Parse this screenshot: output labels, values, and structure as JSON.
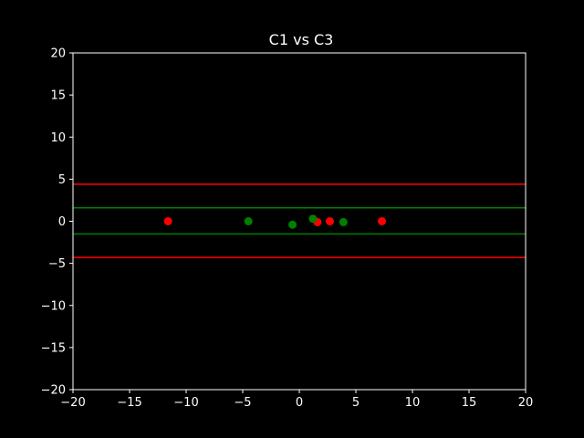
{
  "chart_data": {
    "type": "scatter",
    "title": "C1 vs C3",
    "xlabel": "",
    "ylabel": "",
    "xlim": [
      -20,
      20
    ],
    "ylim": [
      -20,
      20
    ],
    "xticks": [
      -20,
      -15,
      -10,
      -5,
      0,
      5,
      10,
      15,
      20
    ],
    "yticks": [
      -20,
      -15,
      -10,
      -5,
      0,
      5,
      10,
      15,
      20
    ],
    "grid": false,
    "background_color": "#000000",
    "axis_color": "#ffffff",
    "series": [
      {
        "color": "#ff0000",
        "points": [
          {
            "x": -11.6,
            "y": 0.0
          },
          {
            "x": 1.6,
            "y": -0.1
          },
          {
            "x": 2.7,
            "y": 0.0
          },
          {
            "x": 7.3,
            "y": 0.0
          }
        ]
      },
      {
        "color": "#008000",
        "points": [
          {
            "x": -4.5,
            "y": 0.0
          },
          {
            "x": -0.6,
            "y": -0.4
          },
          {
            "x": 1.2,
            "y": 0.3
          },
          {
            "x": 3.9,
            "y": -0.1
          }
        ]
      }
    ],
    "hlines": [
      {
        "y": 4.4,
        "color": "#ff0000"
      },
      {
        "y": -4.3,
        "color": "#ff0000"
      },
      {
        "y": 1.6,
        "color": "#008000"
      },
      {
        "y": -1.5,
        "color": "#008000"
      }
    ]
  }
}
